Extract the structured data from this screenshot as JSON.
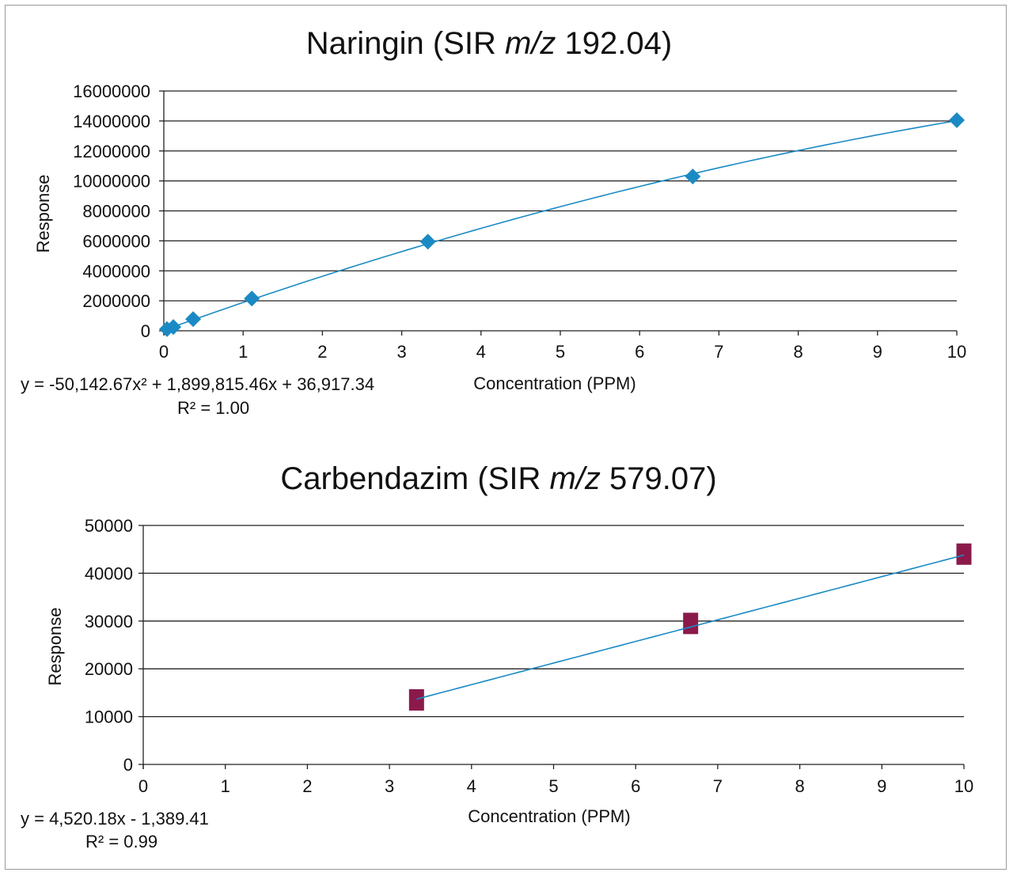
{
  "chart_data": [
    {
      "type": "scatter",
      "title_prefix": "Naringin (SIR ",
      "title_italic": "m/z",
      "title_suffix": " 192.04)",
      "xlabel": "Concentration (PPM)",
      "ylabel": "Response",
      "xlim": [
        0,
        10
      ],
      "ylim": [
        0,
        16000000
      ],
      "xticks": [
        "0",
        "1",
        "2",
        "3",
        "4",
        "5",
        "6",
        "7",
        "8",
        "9",
        "10"
      ],
      "yticks": [
        "0",
        "2000000",
        "4000000",
        "6000000",
        "8000000",
        "10000000",
        "12000000",
        "14000000",
        "16000000"
      ],
      "grid": true,
      "marker": "diamond",
      "marker_color": "#1b8ac4",
      "line_color": "#1b8ac4",
      "points": [
        {
          "x": 0.04,
          "y": 110000
        },
        {
          "x": 0.12,
          "y": 250000
        },
        {
          "x": 0.37,
          "y": 780000
        },
        {
          "x": 1.11,
          "y": 2150000
        },
        {
          "x": 3.33,
          "y": 5950000
        },
        {
          "x": 6.67,
          "y": 10300000
        },
        {
          "x": 10,
          "y": 14050000
        }
      ],
      "fit": {
        "type": "poly2",
        "a": -50142.67,
        "b": 1899815.46,
        "c": 36917.34
      },
      "equation": "y = -50,142.67x² + 1,899,815.46x + 36,917.34",
      "r2": "R² = 1.00"
    },
    {
      "type": "scatter",
      "title_prefix": "Carbendazim (SIR ",
      "title_italic": "m/z",
      "title_suffix": " 579.07)",
      "xlabel": "Concentration (PPM)",
      "ylabel": "Response",
      "xlim": [
        0,
        10
      ],
      "ylim": [
        0,
        50000
      ],
      "xticks": [
        "0",
        "1",
        "2",
        "3",
        "4",
        "5",
        "6",
        "7",
        "8",
        "9",
        "10"
      ],
      "yticks": [
        "0",
        "10000",
        "20000",
        "30000",
        "40000",
        "50000"
      ],
      "grid": true,
      "marker": "square",
      "marker_color": "#8b1a4a",
      "line_color": "#1b8ac4",
      "points": [
        {
          "x": 3.33,
          "y": 13500
        },
        {
          "x": 6.67,
          "y": 29500
        },
        {
          "x": 10,
          "y": 44000
        }
      ],
      "fit": {
        "type": "linear",
        "m": 4520.18,
        "c": -1389.41
      },
      "equation": "y = 4,520.18x - 1,389.41",
      "r2": "R² = 0.99"
    }
  ]
}
